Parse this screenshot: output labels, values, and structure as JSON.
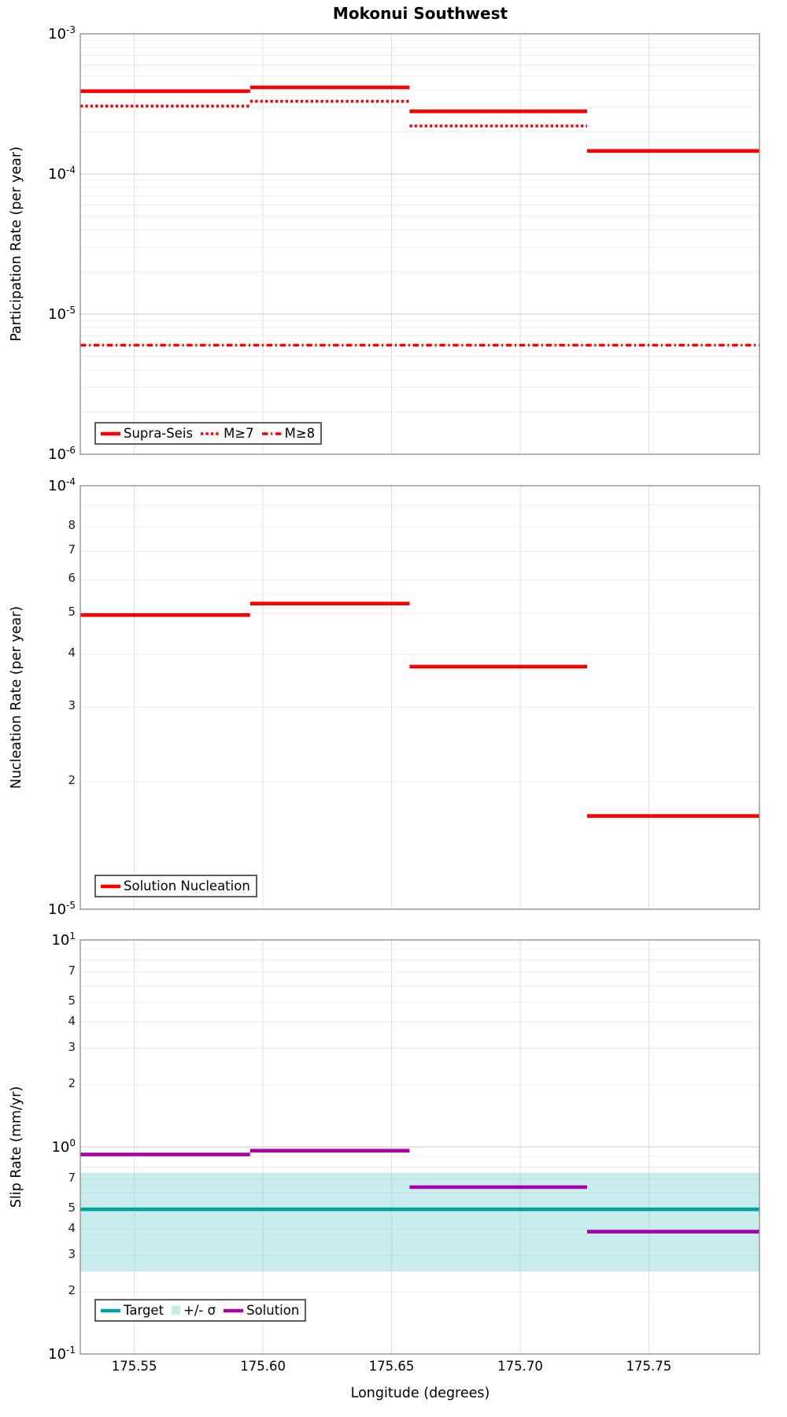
{
  "figure_title": "Mokonui Southwest",
  "x_axis": {
    "label": "Longitude (degrees)",
    "range": [
      175.529,
      175.793
    ],
    "ticks": [
      175.55,
      175.6,
      175.65,
      175.7,
      175.75
    ],
    "tick_labels": [
      "175.55",
      "175.60",
      "175.65",
      "175.70",
      "175.75"
    ]
  },
  "segment_edges": [
    175.529,
    175.595,
    175.657,
    175.726,
    175.793
  ],
  "colors": {
    "rate_lines": "#ff0000",
    "target": "#00a2a2",
    "sigma_band": "#7fd4d1",
    "solution_slip": "#aa00aa"
  },
  "chart_data": [
    {
      "type": "line",
      "title": "Mokonui Southwest",
      "xlabel": "Longitude (degrees)",
      "ylabel": "Participation Rate (per year)",
      "y_log_range": [
        -6,
        -3
      ],
      "x": [
        175.529,
        175.595,
        175.657,
        175.726,
        175.793
      ],
      "minor_tick_labels": [],
      "series": [
        {
          "name": "Supra-Seis",
          "color": "#ff0000",
          "style": "solid",
          "values": [
            0.00039,
            0.000415,
            0.00028,
            0.000146
          ]
        },
        {
          "name": "M≥7",
          "color": "#ff0000",
          "style": "dotted",
          "values": [
            0.000305,
            0.00033,
            0.00022,
            0.000146
          ]
        },
        {
          "name": "M≥8",
          "color": "#ff0000",
          "style": "dashdot",
          "values": [
            6e-06,
            6e-06,
            6e-06,
            6e-06
          ]
        }
      ],
      "legend": [
        "Supra-Seis",
        "M≥7",
        "M≥8"
      ],
      "legend_position": "bottom-left",
      "grid": true
    },
    {
      "type": "line",
      "ylabel": "Nucleation Rate (per year)",
      "y_log_range": [
        -5,
        -4
      ],
      "x": [
        175.529,
        175.595,
        175.657,
        175.726,
        175.793
      ],
      "minor_tick_labels": [
        8,
        7,
        6,
        5,
        4,
        3,
        2
      ],
      "series": [
        {
          "name": "Solution Nucleation",
          "color": "#ff0000",
          "style": "solid",
          "values": [
            4.95e-05,
            5.27e-05,
            3.74e-05,
            1.66e-05
          ]
        }
      ],
      "legend": [
        "Solution Nucleation"
      ],
      "legend_position": "bottom-left",
      "grid": true
    },
    {
      "type": "line",
      "ylabel": "Slip Rate (mm/yr)",
      "y_log_range": [
        -1,
        1
      ],
      "x": [
        175.529,
        175.595,
        175.657,
        175.726,
        175.793
      ],
      "minor_tick_labels": [
        7,
        5,
        4,
        3,
        2
      ],
      "band": {
        "name": "+/- σ",
        "low": 0.25,
        "high": 0.75,
        "color": "#7fd4d1"
      },
      "series": [
        {
          "name": "Target",
          "color": "#00a2a2",
          "style": "solid",
          "values": [
            0.5,
            0.5,
            0.5,
            0.5
          ]
        },
        {
          "name": "Solution",
          "color": "#aa00aa",
          "style": "solid",
          "values": [
            0.92,
            0.96,
            0.64,
            0.39
          ]
        }
      ],
      "legend": [
        "Target",
        "+/- σ",
        "Solution"
      ],
      "legend_position": "bottom-left",
      "grid": true
    }
  ]
}
